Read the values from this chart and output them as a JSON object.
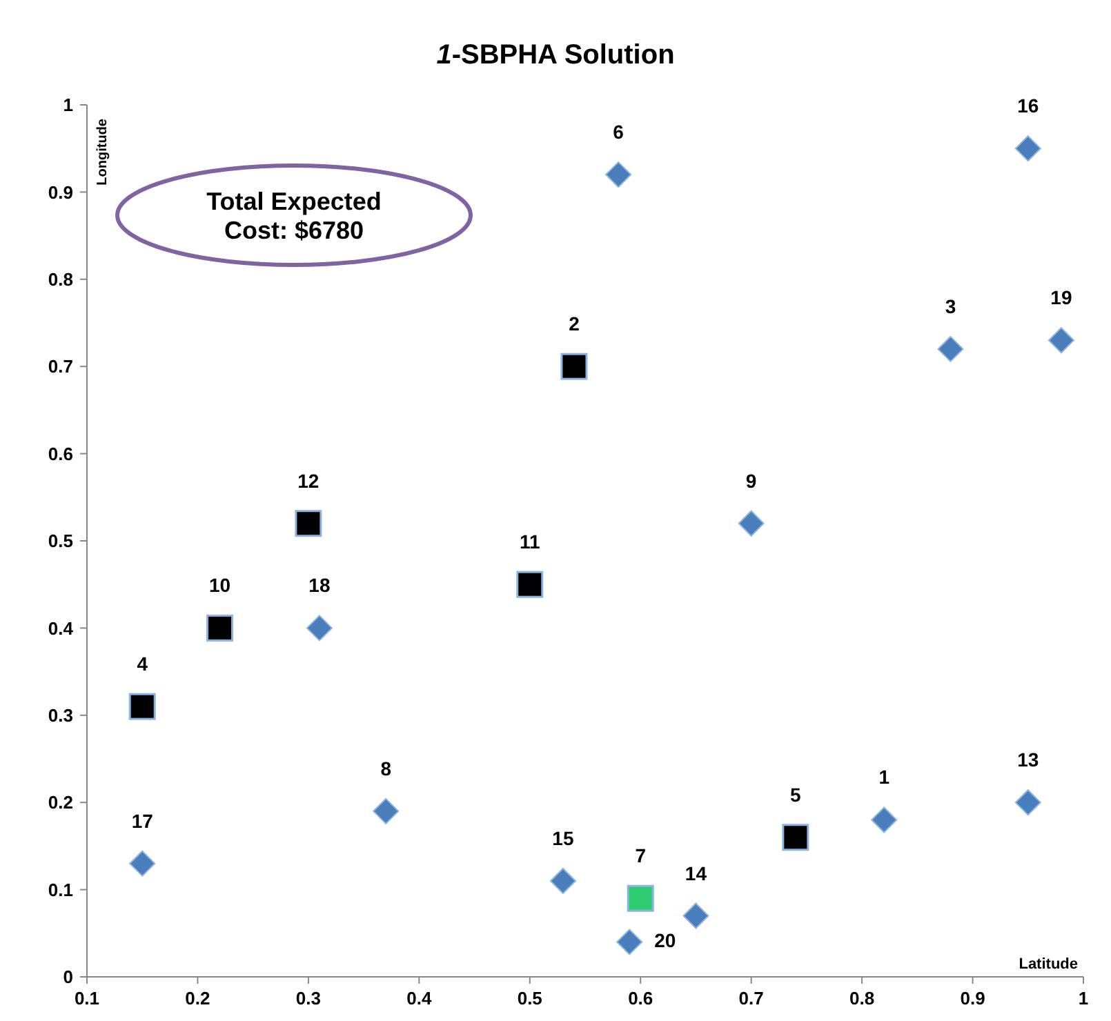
{
  "chart_data": {
    "type": "scatter",
    "title": "1-SBPHA Solution",
    "xlabel": "Latitude",
    "ylabel": "Longitude",
    "xlim": [
      0.1,
      1
    ],
    "xticks": [
      0.1,
      0.2,
      0.3,
      0.4,
      0.5,
      0.6,
      0.7,
      0.8,
      0.9,
      1
    ],
    "ylim": [
      0,
      1
    ],
    "yticks": [
      0,
      0.1,
      0.2,
      0.3,
      0.4,
      0.5,
      0.6,
      0.7,
      0.8,
      0.9,
      1
    ],
    "grid": false,
    "series": [
      {
        "color": "#4a7ebb",
        "marker": "diamond",
        "x": [
          0.82,
          0.88,
          0.58,
          0.37,
          0.7,
          0.95,
          0.65,
          0.53,
          0.95,
          0.15,
          0.31,
          0.98,
          0.59
        ],
        "values": [
          0.18,
          0.72,
          0.92,
          0.19,
          0.52,
          0.2,
          0.07,
          0.11,
          0.95,
          0.13,
          0.4,
          0.73,
          0.04
        ]
      },
      {
        "color": "#000000",
        "marker": "square",
        "x": [
          0.54,
          0.15,
          0.74,
          0.22,
          0.5,
          0.3
        ],
        "values": [
          0.7,
          0.31,
          0.16,
          0.4,
          0.45,
          0.52
        ]
      },
      {
        "color": "#2ecc71",
        "marker": "square",
        "x": [
          0.6
        ],
        "values": [
          0.09
        ]
      }
    ],
    "annotations": [
      "Total Expected Cost: $6780",
      {
        "text": "1",
        "x": 0.82,
        "y": 0.18
      },
      {
        "text": "2",
        "x": 0.54,
        "y": 0.7
      },
      {
        "text": "3",
        "x": 0.88,
        "y": 0.72
      },
      {
        "text": "4",
        "x": 0.15,
        "y": 0.31
      },
      {
        "text": "5",
        "x": 0.74,
        "y": 0.16
      },
      {
        "text": "6",
        "x": 0.58,
        "y": 0.92
      },
      {
        "text": "7",
        "x": 0.6,
        "y": 0.09
      },
      {
        "text": "8",
        "x": 0.37,
        "y": 0.19
      },
      {
        "text": "9",
        "x": 0.7,
        "y": 0.52
      },
      {
        "text": "10",
        "x": 0.22,
        "y": 0.4
      },
      {
        "text": "11",
        "x": 0.5,
        "y": 0.45
      },
      {
        "text": "12",
        "x": 0.3,
        "y": 0.52
      },
      {
        "text": "13",
        "x": 0.95,
        "y": 0.2
      },
      {
        "text": "14",
        "x": 0.65,
        "y": 0.07
      },
      {
        "text": "15",
        "x": 0.53,
        "y": 0.11
      },
      {
        "text": "16",
        "x": 0.95,
        "y": 0.95
      },
      {
        "text": "17",
        "x": 0.15,
        "y": 0.13
      },
      {
        "text": "18",
        "x": 0.31,
        "y": 0.4
      },
      {
        "text": "19",
        "x": 0.98,
        "y": 0.73
      },
      {
        "text": "20",
        "x": 0.59,
        "y": 0.04
      }
    ]
  }
}
